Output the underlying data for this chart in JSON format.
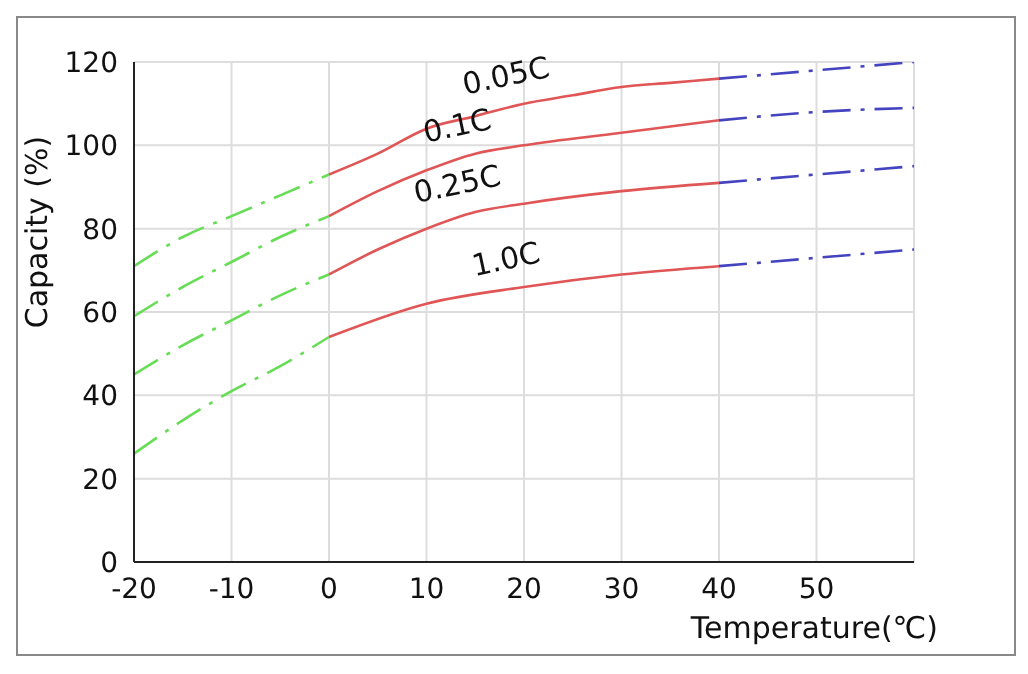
{
  "chart_data": {
    "type": "line",
    "xlabel": "Temperature(℃)",
    "ylabel": "Capacity (%)",
    "xlim": [
      -20,
      60
    ],
    "xticks": [
      -20,
      -10,
      0,
      10,
      20,
      30,
      40,
      50
    ],
    "ylim": [
      0,
      120
    ],
    "yticks": [
      0,
      20,
      40,
      60,
      80,
      100,
      120
    ],
    "grid": true,
    "legend": false,
    "marker": "none",
    "series": [
      {
        "color": "#66dd55",
        "line_style": "dashed",
        "x": [
          -20,
          -15,
          -10,
          -5,
          0
        ],
        "values": [
          71,
          78,
          83,
          88,
          93
        ]
      },
      {
        "name": "0.05C",
        "color": "#e05555",
        "line_style": "solid",
        "x": [
          0,
          5,
          10,
          15,
          20,
          25,
          30,
          35,
          40
        ],
        "values": [
          93,
          98,
          104,
          107,
          110,
          112,
          114,
          115,
          116
        ]
      },
      {
        "color": "#4444c0",
        "line_style": "dashed",
        "x": [
          40,
          50,
          60
        ],
        "values": [
          116,
          118,
          120
        ]
      },
      {
        "color": "#66dd55",
        "line_style": "dashed",
        "x": [
          -20,
          -15,
          -10,
          -5,
          0
        ],
        "values": [
          59,
          66,
          72,
          78,
          83
        ]
      },
      {
        "name": "0.1C",
        "color": "#e05555",
        "line_style": "solid",
        "x": [
          0,
          5,
          10,
          15,
          20,
          30,
          40
        ],
        "values": [
          83,
          89,
          94,
          98,
          100,
          103,
          106
        ]
      },
      {
        "color": "#4444c0",
        "line_style": "dashed",
        "x": [
          40,
          50,
          60
        ],
        "values": [
          106,
          108,
          109
        ]
      },
      {
        "color": "#66dd55",
        "line_style": "dashed",
        "x": [
          -20,
          -15,
          -10,
          -5,
          0
        ],
        "values": [
          45,
          52,
          58,
          64,
          69
        ]
      },
      {
        "name": "0.25C",
        "color": "#e05555",
        "line_style": "solid",
        "x": [
          0,
          5,
          10,
          15,
          20,
          30,
          40
        ],
        "values": [
          69,
          75,
          80,
          84,
          86,
          89,
          91
        ]
      },
      {
        "color": "#4444c0",
        "line_style": "dashed",
        "x": [
          40,
          50,
          60
        ],
        "values": [
          91,
          93,
          95
        ]
      },
      {
        "color": "#66dd55",
        "line_style": "dashed",
        "x": [
          -20,
          -15,
          -10,
          -5,
          0
        ],
        "values": [
          26,
          34,
          41,
          47,
          54
        ]
      },
      {
        "name": "1.0C",
        "color": "#e05555",
        "line_style": "solid",
        "x": [
          0,
          10,
          20,
          30,
          40
        ],
        "values": [
          54,
          62,
          66,
          69,
          71
        ]
      },
      {
        "color": "#4444c0",
        "line_style": "dashed",
        "x": [
          40,
          50,
          60
        ],
        "values": [
          71,
          73,
          75
        ]
      }
    ]
  }
}
